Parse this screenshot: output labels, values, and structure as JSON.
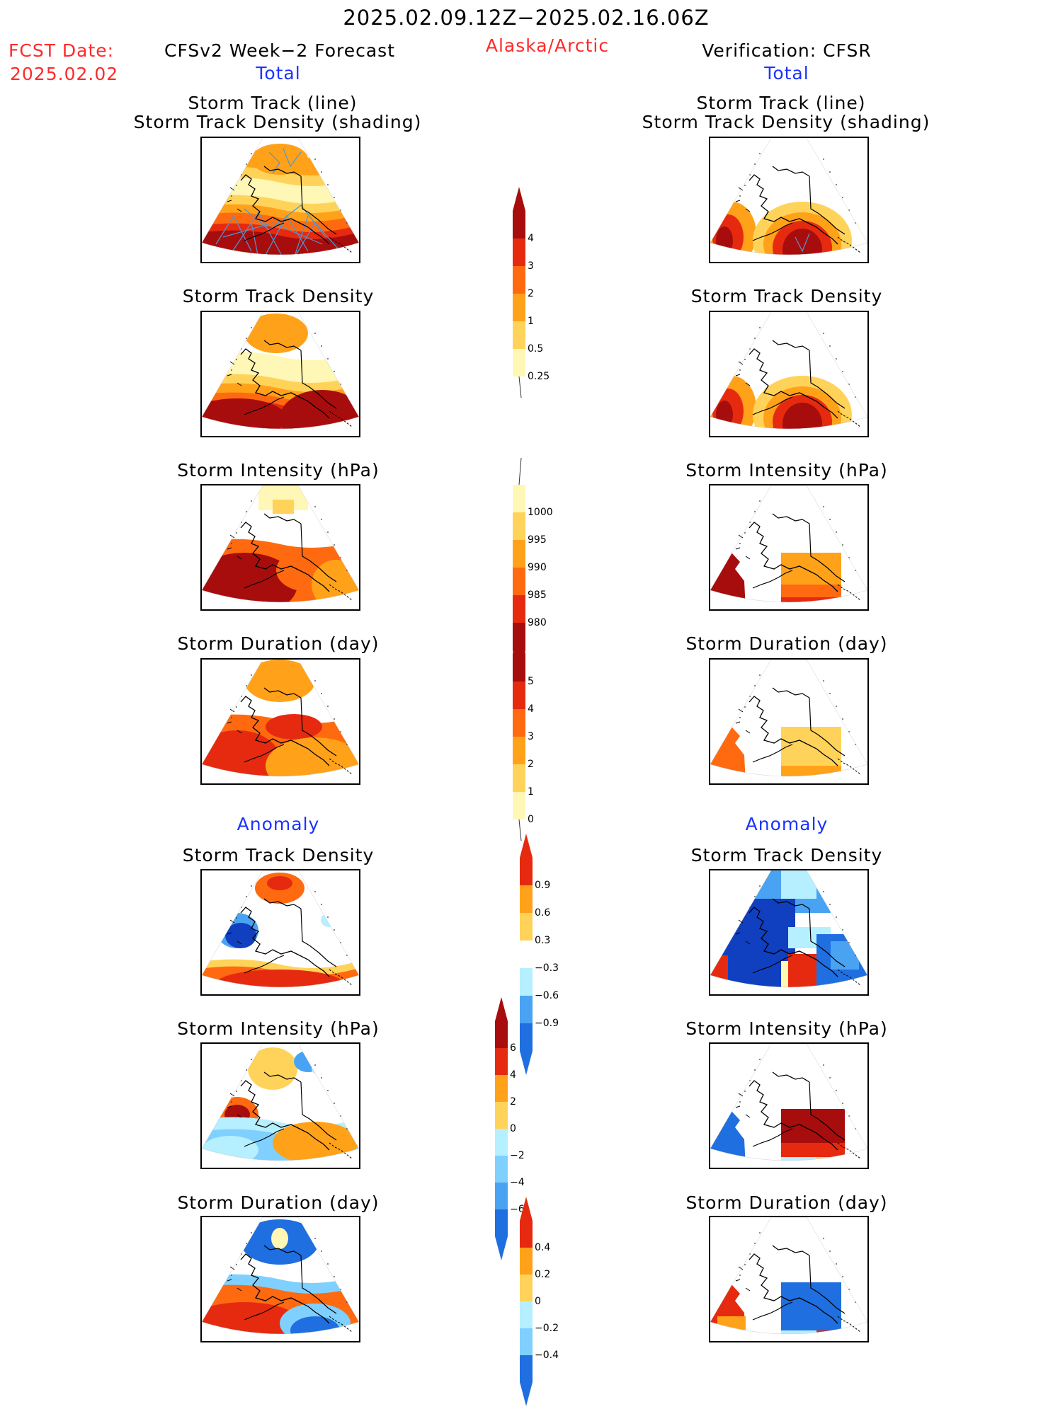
{
  "header": {
    "date_range": "2025.02.09.12Z−2025.02.16.06Z",
    "fcst_label": "FCST Date:",
    "fcst_date": "2025.02.02",
    "left_title": "CFSv2 Week−2 Forecast",
    "region": "Alaska/Arctic",
    "right_title": "Verification: CFSR",
    "left_subtitle": "Total",
    "right_subtitle": "Total"
  },
  "panels": {
    "total": {
      "track_line": "Storm Track (line)",
      "track_shading": "Storm Track Density (shading)",
      "density": "Storm Track Density",
      "intensity": "Storm Intensity (hPa)",
      "duration": "Storm Duration (day)"
    },
    "anomaly": {
      "heading": "Anomaly",
      "density": "Storm Track Density",
      "intensity": "Storm Intensity (hPa)",
      "duration": "Storm Duration (day)"
    }
  },
  "colorbars": {
    "density": [
      "4",
      "3",
      "2",
      "1",
      "0.5",
      "0.25"
    ],
    "intensity": [
      "1000",
      "995",
      "990",
      "985",
      "980"
    ],
    "duration": [
      "5",
      "4",
      "3",
      "2",
      "1",
      "0"
    ],
    "density_anom": [
      "0.9",
      "0.6",
      "0.3",
      "−0.3",
      "−0.6",
      "−0.9"
    ],
    "intensity_anom": [
      "6",
      "4",
      "2",
      "0",
      "−2",
      "−4",
      "−6"
    ],
    "duration_anom": [
      "0.4",
      "0.2",
      "0",
      "−0.2",
      "−0.4"
    ]
  },
  "colors": {
    "warm": [
      "#fff7b5",
      "#ffd35a",
      "#ffa21a",
      "#ff6a10",
      "#e62a10",
      "#a80d0d"
    ],
    "cool": [
      "#b6efff",
      "#7fd0ff",
      "#4aa3f2",
      "#1f6fe0",
      "#1040c0"
    ],
    "track_line": "#4a98d8",
    "text_red": "#ff2a2a",
    "text_blue": "#1a33ff"
  }
}
